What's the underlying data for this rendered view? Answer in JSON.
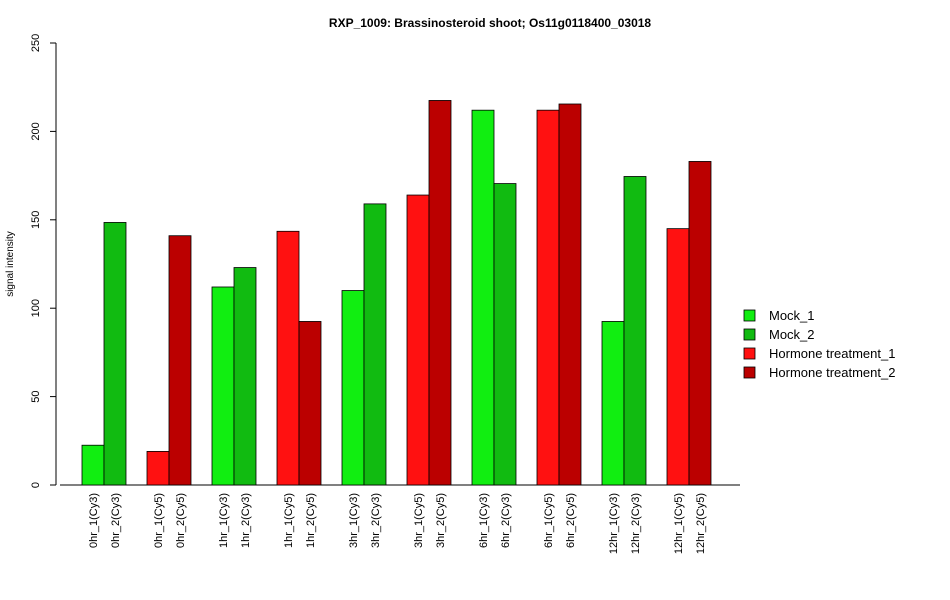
{
  "chart_data": {
    "type": "bar",
    "title": "RXP_1009: Brassinosteroid shoot; Os11g0118400_03018",
    "ylabel": "signal intensity",
    "xlabel": "",
    "ylim": [
      0,
      250
    ],
    "yticks": [
      0,
      50,
      100,
      150,
      200,
      250
    ],
    "grid": false,
    "legend_position": "right",
    "series": [
      {
        "name": "Mock_1",
        "color": "#11ee11"
      },
      {
        "name": "Mock_2",
        "color": "#11bb11"
      },
      {
        "name": "Hormone treatment_1",
        "color": "#ff1111"
      },
      {
        "name": "Hormone treatment_2",
        "color": "#bb0000"
      }
    ],
    "bars": [
      {
        "label": "0hr_1(Cy3)",
        "value": 22.5,
        "series": 0
      },
      {
        "label": "0hr_2(Cy3)",
        "value": 148.5,
        "series": 1
      },
      {
        "label": "0hr_1(Cy5)",
        "value": 19,
        "series": 2
      },
      {
        "label": "0hr_2(Cy5)",
        "value": 141,
        "series": 3
      },
      {
        "label": "1hr_1(Cy3)",
        "value": 112,
        "series": 0
      },
      {
        "label": "1hr_2(Cy3)",
        "value": 123,
        "series": 1
      },
      {
        "label": "1hr_1(Cy5)",
        "value": 143.5,
        "series": 2
      },
      {
        "label": "1hr_2(Cy5)",
        "value": 92.5,
        "series": 3
      },
      {
        "label": "3hr_1(Cy3)",
        "value": 110,
        "series": 0
      },
      {
        "label": "3hr_2(Cy3)",
        "value": 159,
        "series": 1
      },
      {
        "label": "3hr_1(Cy5)",
        "value": 164,
        "series": 2
      },
      {
        "label": "3hr_2(Cy5)",
        "value": 217.5,
        "series": 3
      },
      {
        "label": "6hr_1(Cy3)",
        "value": 212,
        "series": 0
      },
      {
        "label": "6hr_2(Cy3)",
        "value": 170.5,
        "series": 1
      },
      {
        "label": "6hr_1(Cy5)",
        "value": 212,
        "series": 2
      },
      {
        "label": "6hr_2(Cy5)",
        "value": 215.5,
        "series": 3
      },
      {
        "label": "12hr_1(Cy3)",
        "value": 92.5,
        "series": 0
      },
      {
        "label": "12hr_2(Cy3)",
        "value": 174.5,
        "series": 1
      },
      {
        "label": "12hr_1(Cy5)",
        "value": 145,
        "series": 2
      },
      {
        "label": "12hr_2(Cy5)",
        "value": 183,
        "series": 3
      }
    ]
  }
}
